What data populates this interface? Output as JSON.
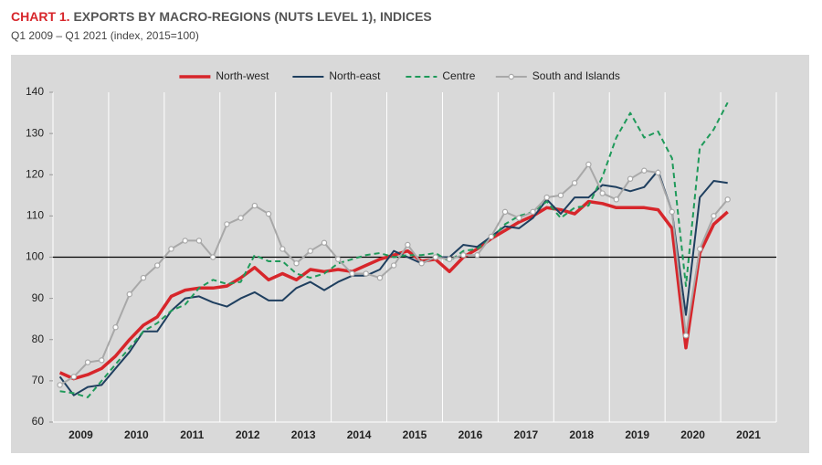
{
  "chart_data": {
    "type": "line",
    "title_number": "CHART 1.",
    "title": "EXPORTS BY MACRO-REGIONS (NUTS LEVEL 1), INDICES",
    "subtitle": "Q1 2009 – Q1 2021 (index, 2015=100)",
    "categories": [
      "2009",
      null,
      null,
      null,
      "2010",
      null,
      null,
      null,
      "2011",
      null,
      null,
      null,
      "2012",
      null,
      null,
      null,
      "2013",
      null,
      null,
      null,
      "2014",
      null,
      null,
      null,
      "2015",
      null,
      null,
      null,
      "2016",
      null,
      null,
      null,
      "2017",
      null,
      null,
      null,
      "2018",
      null,
      null,
      null,
      "2019",
      null,
      null,
      null,
      "2020",
      null,
      null,
      null,
      "2021"
    ],
    "series": [
      {
        "name": "North-west",
        "color": "#d7262b",
        "values": [
          72,
          70.5,
          71.5,
          73,
          76,
          80,
          83.5,
          85.5,
          90.5,
          92,
          92.5,
          92.5,
          93,
          95,
          97.5,
          94.5,
          96,
          94.5,
          97,
          96.5,
          97,
          96.5,
          98,
          99.5,
          100.5,
          101.5,
          99,
          99.5,
          96.5,
          100,
          102,
          104.5,
          106.5,
          108.5,
          110,
          112,
          111.5,
          110.5,
          113.5,
          113,
          112,
          112,
          112,
          111.5,
          107,
          78,
          101,
          108,
          111
        ]
      },
      {
        "name": "North-east",
        "color": "#1f3f5f",
        "values": [
          71,
          66.5,
          68.5,
          69,
          73,
          77,
          82,
          82,
          87,
          90,
          90.5,
          89,
          88,
          90,
          91.5,
          89.5,
          89.5,
          92.5,
          94,
          92,
          94,
          95.5,
          95.5,
          97,
          101.5,
          100,
          98.5,
          100,
          100,
          103,
          102.5,
          105,
          107.5,
          107,
          109.5,
          114,
          110.5,
          114.5,
          114.5,
          117.5,
          117,
          116,
          117,
          121,
          111,
          86,
          114.5,
          118.5,
          118
        ]
      },
      {
        "name": "Centre",
        "color": "#1f9a5a",
        "dash": true,
        "values": [
          67.5,
          67,
          66,
          70,
          74,
          78,
          82,
          84,
          87,
          88.5,
          92.5,
          94.5,
          93.5,
          94,
          100.5,
          99,
          99,
          96,
          95,
          96,
          98.5,
          99.5,
          100.5,
          101,
          100,
          100.5,
          100.5,
          101,
          99,
          101.5,
          102,
          104.5,
          108,
          110,
          111,
          113.5,
          109.5,
          112,
          112.5,
          119.5,
          129,
          135,
          129,
          130.5,
          124,
          93,
          126.5,
          131,
          137.5
        ]
      },
      {
        "name": "South and Islands",
        "color": "#a8a8a8",
        "markers": true,
        "values": [
          69,
          71,
          74.5,
          75,
          83,
          91,
          95,
          98,
          102,
          104,
          104,
          100,
          108,
          109.5,
          112.5,
          110.5,
          102,
          98.5,
          101.5,
          103.5,
          99.5,
          96,
          96,
          95,
          98,
          103,
          98.5,
          100,
          99.5,
          100.5,
          100.5,
          105,
          111,
          109.5,
          111,
          114.5,
          115,
          118,
          122.5,
          115.5,
          114,
          119,
          121,
          120.5,
          111,
          81,
          102,
          110,
          114
        ]
      }
    ],
    "ylim": [
      60,
      140
    ],
    "yticks": [
      60,
      70,
      80,
      90,
      100,
      110,
      120,
      130,
      140
    ],
    "reference_line": 100,
    "x_grid": true,
    "legend": "top"
  }
}
